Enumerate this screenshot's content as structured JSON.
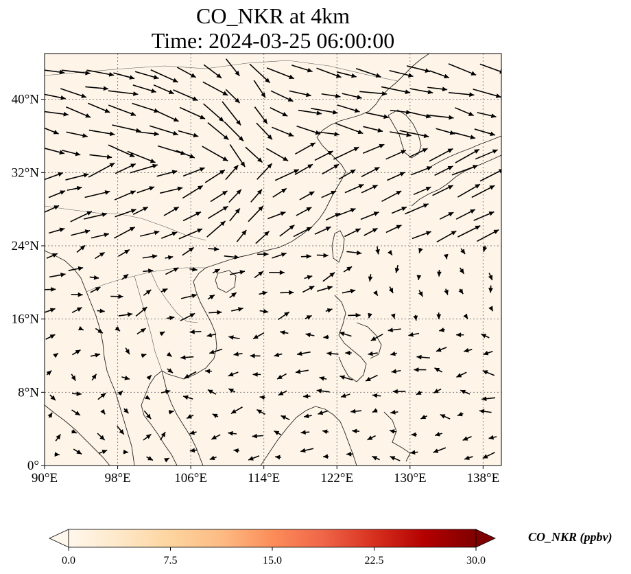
{
  "title": {
    "line1": "CO_NKR at 4km",
    "line2": "Time: 2024-03-25 06:00:00"
  },
  "map": {
    "extent": {
      "lon": [
        90,
        140
      ],
      "lat": [
        0,
        45
      ]
    },
    "lon_ticks": [
      {
        "value": 90,
        "label": "90°E"
      },
      {
        "value": 98,
        "label": "98°E"
      },
      {
        "value": 106,
        "label": "106°E"
      },
      {
        "value": 114,
        "label": "114°E"
      },
      {
        "value": 122,
        "label": "122°E"
      },
      {
        "value": 130,
        "label": "130°E"
      },
      {
        "value": 138,
        "label": "138°E"
      }
    ],
    "lat_ticks": [
      {
        "value": 0,
        "label": "0°"
      },
      {
        "value": 8,
        "label": "8°N"
      },
      {
        "value": 16,
        "label": "16°N"
      },
      {
        "value": 24,
        "label": "24°N"
      },
      {
        "value": 32,
        "label": "32°N"
      },
      {
        "value": 40,
        "label": "40°N"
      }
    ],
    "gridlines": true,
    "field_color": "#fef5e8",
    "wind_arrows": true
  },
  "colorbar": {
    "label": "CO_NKR (ppbv)",
    "ticks": [
      "0.0",
      "7.5",
      "15.0",
      "22.5",
      "30.0"
    ],
    "extend": "both",
    "colormap": "OrRd"
  }
}
